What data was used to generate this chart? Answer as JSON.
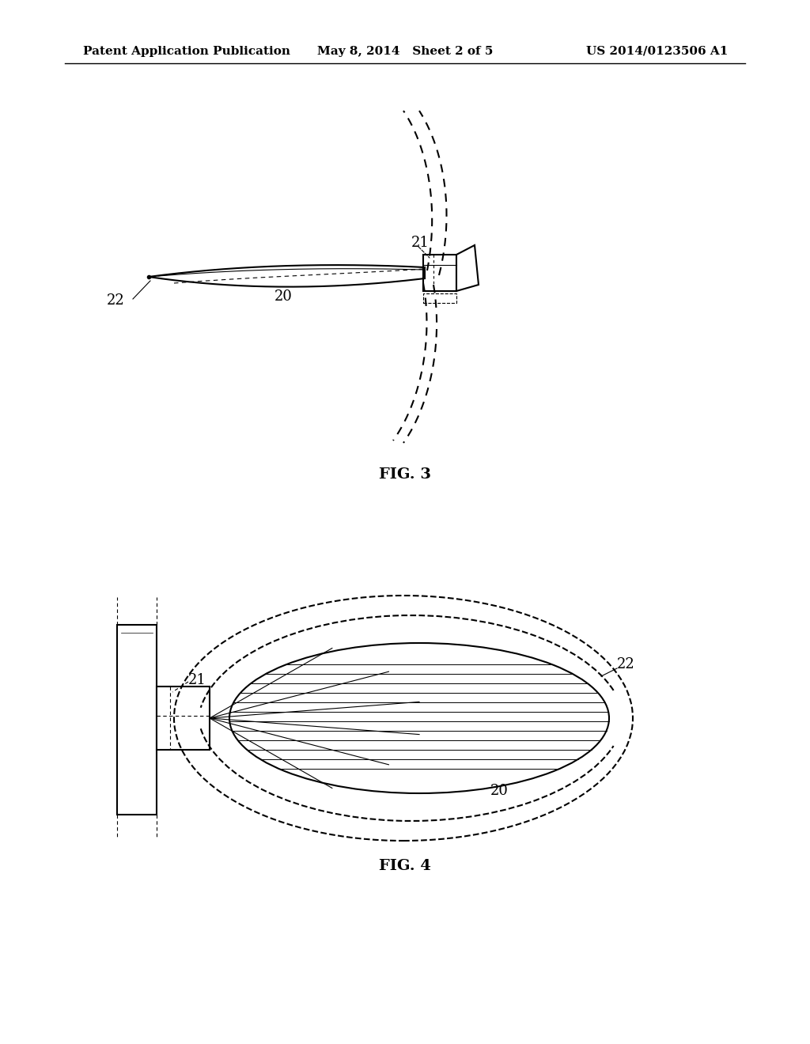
{
  "bg_color": "#ffffff",
  "text_color": "#000000",
  "header_left": "Patent Application Publication",
  "header_mid": "May 8, 2014   Sheet 2 of 5",
  "header_right": "US 2014/0123506 A1",
  "fig3_label": "FIG. 3",
  "fig4_label": "FIG. 4",
  "label_20_fig3": "20",
  "label_21_fig3": "21",
  "label_22_fig3": "22",
  "label_20_fig4": "20",
  "label_21_fig4": "21",
  "label_22_fig4": "22"
}
